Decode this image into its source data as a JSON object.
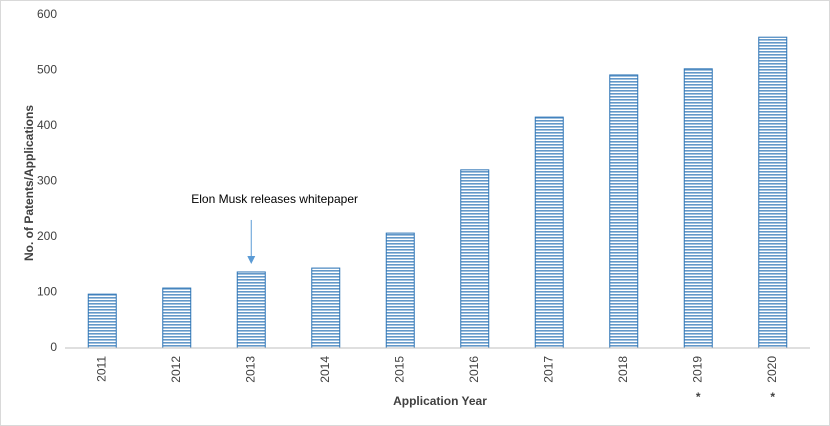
{
  "chart_data": {
    "type": "bar",
    "x_label": "Application Year",
    "y_label": "No. of Patents/Applications",
    "categories": [
      "2011",
      "2012",
      "2013",
      "2014",
      "2015",
      "2016",
      "2017",
      "2018",
      "2019",
      "2020"
    ],
    "values": [
      97,
      108,
      137,
      144,
      207,
      321,
      416,
      492,
      503,
      560
    ],
    "category_notes": [
      null,
      null,
      null,
      null,
      null,
      null,
      null,
      null,
      "*",
      "*"
    ],
    "annotations": [
      {
        "text": "Elon Musk releases whitepaper",
        "category": "2013"
      }
    ],
    "color": "#2e75b6",
    "ylim": [
      0,
      600
    ],
    "yticks": [
      0,
      100,
      200,
      300,
      400,
      500,
      600
    ],
    "grid": false
  }
}
